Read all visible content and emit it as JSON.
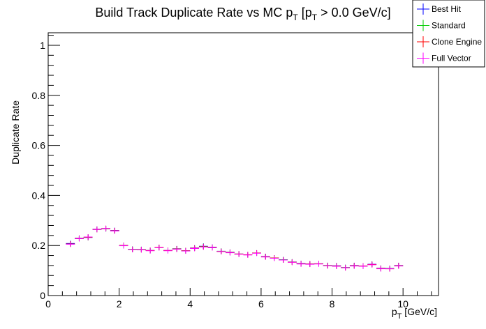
{
  "chart_data": {
    "type": "scatter",
    "title": {
      "main": "Build Track Duplicate Rate vs MC p",
      "sub1": "T",
      "mid": " [p",
      "sub2": "T",
      "tail": " > 0.0 GeV/c]"
    },
    "xlabel": {
      "main": "p",
      "sub": "T",
      "tail": " [GeV/c]"
    },
    "ylabel": "Duplicate Rate",
    "xlim": [
      0,
      11
    ],
    "ylim": [
      0,
      1.05
    ],
    "grid": false,
    "legend_placement": "top-right",
    "x_ticks": [
      {
        "value": 0,
        "label": "0"
      },
      {
        "value": 2,
        "label": "2"
      },
      {
        "value": 4,
        "label": "4"
      },
      {
        "value": 6,
        "label": "6"
      },
      {
        "value": 8,
        "label": "8"
      },
      {
        "value": 10,
        "label": "10"
      }
    ],
    "y_ticks": [
      {
        "value": 0,
        "label": "0"
      },
      {
        "value": 0.2,
        "label": "0.2"
      },
      {
        "value": 0.4,
        "label": "0.4"
      },
      {
        "value": 0.6,
        "label": "0.6"
      },
      {
        "value": 0.8,
        "label": "0.8"
      },
      {
        "value": 1.0,
        "label": "1"
      }
    ],
    "bin_width": 0.25,
    "series": [
      {
        "name": "Best Hit",
        "color": "#0000ff",
        "x": [
          0.625,
          0.875,
          1.125,
          1.375,
          1.625,
          1.875,
          2.125,
          2.375,
          2.625,
          2.875,
          3.125,
          3.375,
          3.625,
          3.875,
          4.125,
          4.375,
          4.625,
          4.875,
          5.125,
          5.375,
          5.625,
          5.875,
          6.125,
          6.375,
          6.625,
          6.875,
          7.125,
          7.375,
          7.625,
          7.875,
          8.125,
          8.375,
          8.625,
          8.875,
          9.125,
          9.375,
          9.625,
          9.875
        ],
        "y": [
          0.208,
          0.229,
          0.232,
          0.265,
          0.267,
          0.26,
          0.2,
          0.185,
          0.184,
          0.18,
          0.192,
          0.18,
          0.187,
          0.179,
          0.19,
          0.197,
          0.193,
          0.177,
          0.173,
          0.166,
          0.163,
          0.17,
          0.156,
          0.15,
          0.143,
          0.134,
          0.128,
          0.126,
          0.127,
          0.12,
          0.119,
          0.112,
          0.12,
          0.118,
          0.125,
          0.109,
          0.108,
          0.12
        ]
      },
      {
        "name": "Standard",
        "color": "#00cc00",
        "x": [
          0.625,
          0.875,
          1.125,
          1.375,
          1.625,
          1.875,
          2.125,
          2.375,
          2.625,
          2.875,
          3.125,
          3.375,
          3.625,
          3.875,
          4.125,
          4.375,
          4.625,
          4.875,
          5.125,
          5.375,
          5.625,
          5.875,
          6.125,
          6.375,
          6.625,
          6.875,
          7.125,
          7.375,
          7.625,
          7.875,
          8.125,
          8.375,
          8.625,
          8.875,
          9.125,
          9.375,
          9.625,
          9.875
        ],
        "y": [
          0.206,
          0.228,
          0.233,
          0.264,
          0.267,
          0.259,
          0.2,
          0.185,
          0.184,
          0.18,
          0.192,
          0.18,
          0.186,
          0.179,
          0.189,
          0.196,
          0.192,
          0.177,
          0.172,
          0.166,
          0.163,
          0.17,
          0.155,
          0.15,
          0.143,
          0.134,
          0.127,
          0.126,
          0.127,
          0.12,
          0.118,
          0.112,
          0.119,
          0.118,
          0.124,
          0.108,
          0.108,
          0.119
        ]
      },
      {
        "name": "Clone Engine",
        "color": "#ff0000",
        "x": [
          0.625,
          0.875,
          1.125,
          1.375,
          1.625,
          1.875,
          2.125,
          2.375,
          2.625,
          2.875,
          3.125,
          3.375,
          3.625,
          3.875,
          4.125,
          4.375,
          4.625,
          4.875,
          5.125,
          5.375,
          5.625,
          5.875,
          6.125,
          6.375,
          6.625,
          6.875,
          7.125,
          7.375,
          7.625,
          7.875,
          8.125,
          8.375,
          8.625,
          8.875,
          9.125,
          9.375,
          9.625,
          9.875
        ],
        "y": [
          0.206,
          0.228,
          0.233,
          0.264,
          0.268,
          0.259,
          0.2,
          0.184,
          0.183,
          0.18,
          0.192,
          0.18,
          0.186,
          0.179,
          0.189,
          0.195,
          0.192,
          0.176,
          0.172,
          0.166,
          0.163,
          0.17,
          0.155,
          0.15,
          0.142,
          0.133,
          0.127,
          0.126,
          0.127,
          0.119,
          0.118,
          0.111,
          0.119,
          0.118,
          0.124,
          0.108,
          0.107,
          0.119
        ]
      },
      {
        "name": "Full Vector",
        "color": "#ff00ff",
        "x": [
          0.625,
          0.875,
          1.125,
          1.375,
          1.625,
          1.875,
          2.125,
          2.375,
          2.625,
          2.875,
          3.125,
          3.375,
          3.625,
          3.875,
          4.125,
          4.375,
          4.625,
          4.875,
          5.125,
          5.375,
          5.625,
          5.875,
          6.125,
          6.375,
          6.625,
          6.875,
          7.125,
          7.375,
          7.625,
          7.875,
          8.125,
          8.375,
          8.625,
          8.875,
          9.125,
          9.375,
          9.625,
          9.875
        ],
        "y": [
          0.205,
          0.227,
          0.234,
          0.264,
          0.268,
          0.258,
          0.199,
          0.184,
          0.183,
          0.179,
          0.191,
          0.179,
          0.185,
          0.178,
          0.188,
          0.194,
          0.191,
          0.176,
          0.171,
          0.165,
          0.162,
          0.169,
          0.154,
          0.149,
          0.142,
          0.133,
          0.126,
          0.125,
          0.126,
          0.119,
          0.117,
          0.111,
          0.118,
          0.117,
          0.123,
          0.107,
          0.107,
          0.118
        ]
      }
    ]
  }
}
